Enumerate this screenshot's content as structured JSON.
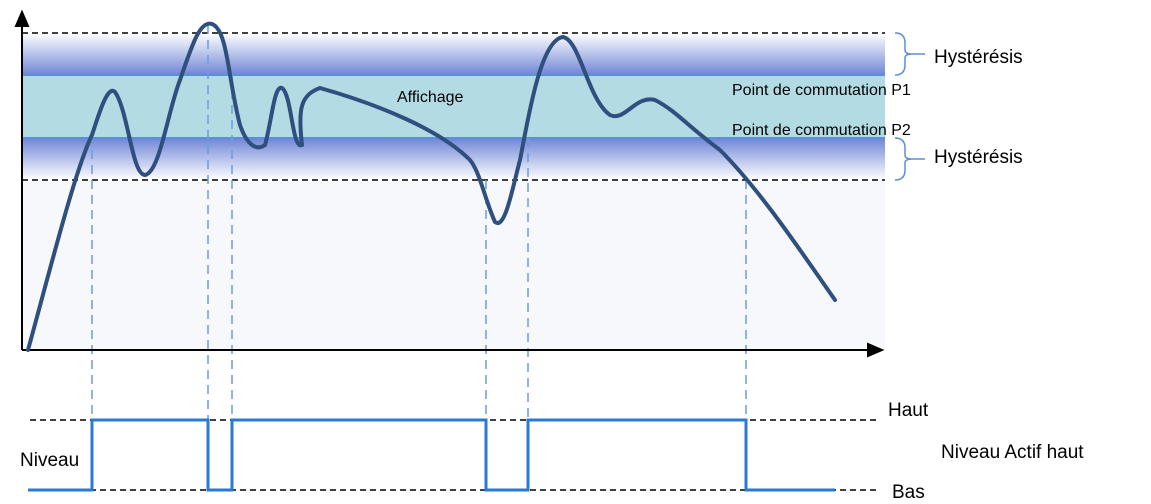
{
  "labels": {
    "hysteresis_top": "Hystérésis",
    "hysteresis_bottom": "Hystérésis",
    "display": "Affichage",
    "switch_p1": "Point de commutation P1",
    "switch_p2": "Point de commutation P2",
    "high": "Haut",
    "low": "Bas",
    "level": "Niveau",
    "active_level": "Niveau Actif haut"
  }
}
